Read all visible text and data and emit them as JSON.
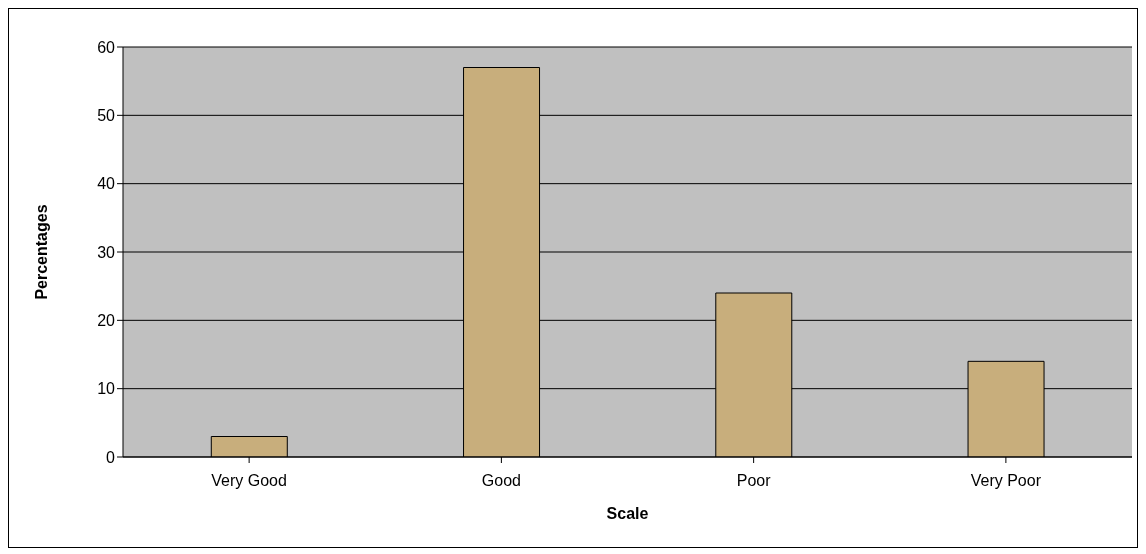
{
  "chart_data": {
    "type": "bar",
    "xlabel": "Scale",
    "ylabel": "Percentages",
    "categories": [
      "Very Good",
      "Good",
      "Poor",
      "Very Poor"
    ],
    "values": [
      3,
      57,
      24,
      14
    ],
    "color": "#c8ae7c",
    "ylim": [
      0,
      60
    ],
    "yticks": [
      0,
      10,
      20,
      30,
      40,
      50,
      60
    ],
    "grid": "y"
  }
}
